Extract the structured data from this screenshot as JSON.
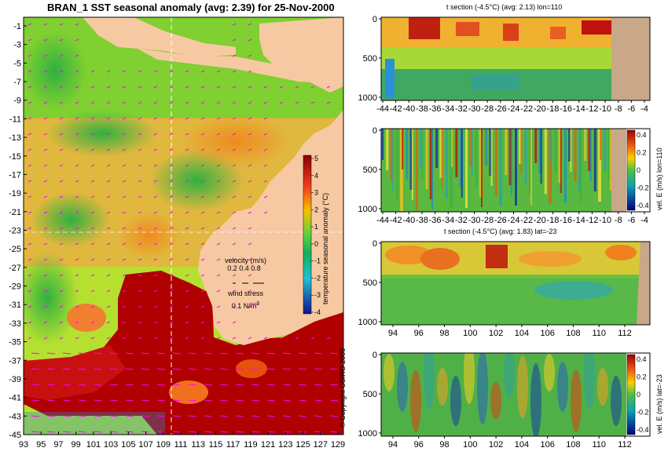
{
  "map": {
    "title": "BRAN_1 SST seasonal anomaly (avg: 2.39) for 25-Nov-2000",
    "lat_ticks": [
      "-1",
      "-3",
      "-5",
      "-7",
      "-9",
      "-11",
      "-13",
      "-15",
      "-17",
      "-19",
      "-21",
      "-23",
      "-25",
      "-27",
      "-29",
      "-31",
      "-33",
      "-35",
      "-37",
      "-39",
      "-41",
      "-43",
      "-45"
    ],
    "lon_ticks": [
      "93",
      "95",
      "97",
      "99",
      "101",
      "103",
      "105",
      "107",
      "109",
      "111",
      "113",
      "115",
      "117",
      "119",
      "121",
      "123",
      "125",
      "127",
      "129"
    ],
    "colorbar_ticks": [
      "5",
      "4",
      "3",
      "2",
      "1",
      "0",
      "-1",
      "-2",
      "-3",
      "-4"
    ],
    "colorbar_label": "temperature seasonal anomaly (°C)",
    "section_lat": -23,
    "section_lon": 110,
    "legend": {
      "velocity_label": "velocity (m/s)",
      "velocity_scale": "0.2 0.4 0.8",
      "wind_label": "wind stress",
      "wind_scale": "0.1 N/m",
      "wind_scale_exp": "2"
    },
    "copyright": "© Copyright CSIRO 2006",
    "colors": {
      "land": "#f7c9a3",
      "anomaly_hot": "#b00000",
      "anomaly_warm": "#f0a030",
      "anomaly_neutral": "#8ed020"
    }
  },
  "panels": [
    {
      "title": "t section (-4.5°C) (avg: 2.13) lon=110",
      "y_ticks": [
        "0",
        "500",
        "1000"
      ],
      "x_ticks": [
        "-44",
        "-42",
        "-40",
        "-38",
        "-36",
        "-34",
        "-32",
        "-30",
        "-28",
        "-26",
        "-24",
        "-22",
        "-20",
        "-18",
        "-16",
        "-14",
        "-12",
        "-10",
        "-8",
        "-6",
        "-4"
      ],
      "colorbar": null
    },
    {
      "title": "",
      "y_ticks": [
        "0",
        "500",
        "1000"
      ],
      "x_ticks": [
        "-44",
        "-42",
        "-40",
        "-38",
        "-36",
        "-34",
        "-32",
        "-30",
        "-28",
        "-26",
        "-24",
        "-22",
        "-20",
        "-18",
        "-16",
        "-14",
        "-12",
        "-10",
        "-8",
        "-6",
        "-4"
      ],
      "colorbar": {
        "ticks": [
          "0.4",
          "0.2",
          "0",
          "-0.2",
          "-0.4"
        ],
        "label": "vel. E (m/s) lon=110"
      }
    },
    {
      "title": "t section (-4.5°C) (avg: 1.83) lat=-23",
      "y_ticks": [
        "0",
        "500",
        "1000"
      ],
      "x_ticks": [
        "94",
        "96",
        "98",
        "100",
        "102",
        "104",
        "106",
        "108",
        "110",
        "112"
      ],
      "colorbar": null
    },
    {
      "title": "",
      "y_ticks": [
        "0",
        "500",
        "1000"
      ],
      "x_ticks": [
        "94",
        "96",
        "98",
        "100",
        "102",
        "104",
        "106",
        "108",
        "110",
        "112"
      ],
      "colorbar": {
        "ticks": [
          "0.4",
          "0.2",
          "0",
          "-0.2",
          "-0.4"
        ],
        "label": "vel. E (m/s) lat=-23"
      }
    }
  ]
}
